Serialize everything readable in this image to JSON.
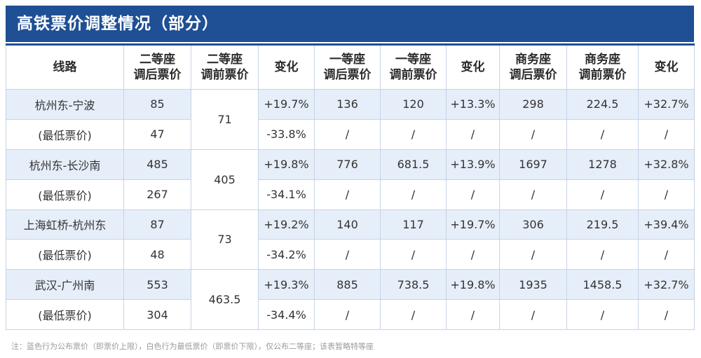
{
  "title": "高铁票价调整情况（部分）",
  "headers": {
    "route": "线路",
    "second_new": [
      "二等座",
      "调后票价"
    ],
    "second_old": [
      "二等座",
      "调前票价"
    ],
    "second_change": "变化",
    "first_new": [
      "一等座",
      "调后票价"
    ],
    "first_old": [
      "一等座",
      "调前票价"
    ],
    "first_change": "变化",
    "business_new": [
      "商务座",
      "调后票价"
    ],
    "business_old": [
      "商务座",
      "调前票价"
    ],
    "business_change": "变化"
  },
  "routes": [
    {
      "name": "杭州东-宁波",
      "second_old": "71",
      "public": {
        "second_new": "85",
        "second_change": "+19.7%",
        "first_new": "136",
        "first_old": "120",
        "first_change": "+13.3%",
        "business_new": "298",
        "business_old": "224.5",
        "business_change": "+32.7%"
      },
      "lowest": {
        "label": "(最低票价)",
        "second_new": "47",
        "second_change": "-33.8%",
        "first_new": "/",
        "first_old": "/",
        "first_change": "/",
        "business_new": "/",
        "business_old": "/",
        "business_change": "/"
      }
    },
    {
      "name": "杭州东-长沙南",
      "second_old": "405",
      "public": {
        "second_new": "485",
        "second_change": "+19.8%",
        "first_new": "776",
        "first_old": "681.5",
        "first_change": "+13.9%",
        "business_new": "1697",
        "business_old": "1278",
        "business_change": "+32.8%"
      },
      "lowest": {
        "label": "(最低票价)",
        "second_new": "267",
        "second_change": "-34.1%",
        "first_new": "/",
        "first_old": "/",
        "first_change": "/",
        "business_new": "/",
        "business_old": "/",
        "business_change": "/"
      }
    },
    {
      "name": "上海虹桥-杭州东",
      "second_old": "73",
      "public": {
        "second_new": "87",
        "second_change": "+19.2%",
        "first_new": "140",
        "first_old": "117",
        "first_change": "+19.7%",
        "business_new": "306",
        "business_old": "219.5",
        "business_change": "+39.4%"
      },
      "lowest": {
        "label": "(最低票价)",
        "second_new": "48",
        "second_change": "-34.2%",
        "first_new": "/",
        "first_old": "/",
        "first_change": "/",
        "business_new": "/",
        "business_old": "/",
        "business_change": "/"
      }
    },
    {
      "name": "武汉-广州南",
      "second_old": "463.5",
      "public": {
        "second_new": "553",
        "second_change": "+19.3%",
        "first_new": "885",
        "first_old": "738.5",
        "first_change": "+19.8%",
        "business_new": "1935",
        "business_old": "1458.5",
        "business_change": "+32.7%"
      },
      "lowest": {
        "label": "(最低票价)",
        "second_new": "304",
        "second_change": "-34.4%",
        "first_new": "/",
        "first_old": "/",
        "first_change": "/",
        "business_new": "/",
        "business_old": "/",
        "business_change": "/"
      }
    }
  ],
  "footnote": "注：蓝色行为公布票价（即票价上限），白色行为最低票价（即票价下限），仅公布二等座；该表暂略特等座",
  "colors": {
    "title_bg": "#1f4f94",
    "public_row_bg": "#e6eef9",
    "lowest_row_bg": "#ffffff",
    "grid": "#c6d3e6"
  }
}
